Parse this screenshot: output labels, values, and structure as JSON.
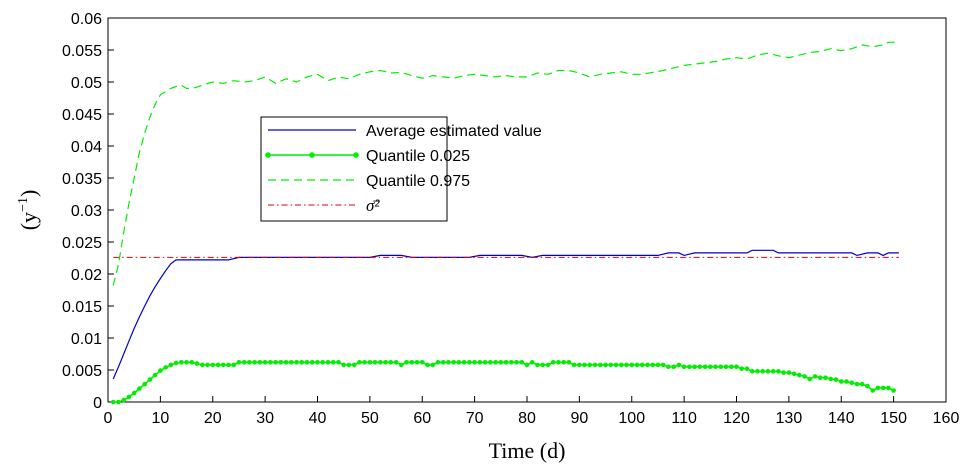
{
  "chart_data": {
    "type": "line",
    "xlabel": "Time (d)",
    "ylabel": "(y−1)",
    "ylabel_base": "(y",
    "ylabel_exp": "−1",
    "ylabel_close": ")",
    "xlim": [
      0,
      160
    ],
    "ylim": [
      0,
      0.06
    ],
    "x_ticks": [
      0,
      10,
      20,
      30,
      40,
      50,
      60,
      70,
      80,
      90,
      100,
      110,
      120,
      130,
      140,
      150,
      160
    ],
    "y_ticks": [
      0,
      0.005,
      0.01,
      0.015,
      0.02,
      0.025,
      0.03,
      0.035,
      0.04,
      0.045,
      0.05,
      0.055,
      0.06
    ],
    "x_tick_labels": [
      "0",
      "10",
      "20",
      "30",
      "40",
      "50",
      "60",
      "70",
      "80",
      "90",
      "100",
      "110",
      "120",
      "130",
      "140",
      "150",
      "160"
    ],
    "y_tick_labels": [
      "0",
      "0.005",
      "0.01",
      "0.015",
      "0.02",
      "0.025",
      "0.03",
      "0.035",
      "0.04",
      "0.045",
      "0.05",
      "0.055",
      "0.06"
    ],
    "grid": false,
    "legend_position": "center-left",
    "colors": {
      "average": "#0000cc",
      "quantile_low": "#00ee00",
      "quantile_high": "#00ee00",
      "sigma": "#dd0000"
    },
    "series": [
      {
        "name": "Average estimated value",
        "style": "solid",
        "points": [
          [
            1,
            0.0036
          ],
          [
            2,
            0.0055
          ],
          [
            3,
            0.0075
          ],
          [
            4,
            0.0095
          ],
          [
            5,
            0.0115
          ],
          [
            6,
            0.0133
          ],
          [
            7,
            0.015
          ],
          [
            8,
            0.0166
          ],
          [
            9,
            0.018
          ],
          [
            10,
            0.0193
          ],
          [
            11,
            0.0205
          ],
          [
            12,
            0.0216
          ],
          [
            13,
            0.0222
          ],
          [
            14,
            0.0222
          ],
          [
            16,
            0.0222
          ],
          [
            18,
            0.0222
          ],
          [
            20,
            0.0222
          ],
          [
            23,
            0.0222
          ],
          [
            25,
            0.0226
          ],
          [
            30,
            0.0226
          ],
          [
            35,
            0.0226
          ],
          [
            40,
            0.0226
          ],
          [
            45,
            0.0226
          ],
          [
            50,
            0.0226
          ],
          [
            52,
            0.0229
          ],
          [
            56,
            0.0229
          ],
          [
            58,
            0.0226
          ],
          [
            62,
            0.0226
          ],
          [
            66,
            0.0226
          ],
          [
            69,
            0.0226
          ],
          [
            71,
            0.0229
          ],
          [
            75,
            0.0229
          ],
          [
            79,
            0.0229
          ],
          [
            81,
            0.0226
          ],
          [
            83,
            0.0229
          ],
          [
            88,
            0.0229
          ],
          [
            92,
            0.0229
          ],
          [
            96,
            0.0229
          ],
          [
            100,
            0.0229
          ],
          [
            105,
            0.0229
          ],
          [
            107,
            0.0233
          ],
          [
            109,
            0.0233
          ],
          [
            110,
            0.0229
          ],
          [
            112,
            0.0233
          ],
          [
            116,
            0.0233
          ],
          [
            120,
            0.0233
          ],
          [
            122,
            0.0233
          ],
          [
            123,
            0.0237
          ],
          [
            127,
            0.0237
          ],
          [
            128,
            0.0233
          ],
          [
            133,
            0.0233
          ],
          [
            138,
            0.0233
          ],
          [
            142,
            0.0233
          ],
          [
            143,
            0.0229
          ],
          [
            145,
            0.0233
          ],
          [
            147,
            0.0233
          ],
          [
            148,
            0.0229
          ],
          [
            149,
            0.0233
          ],
          [
            151,
            0.0233
          ]
        ]
      },
      {
        "name": "Quantile 0.025",
        "style": "solid-markers",
        "points": [
          [
            1,
            0.0
          ],
          [
            2,
            0.0
          ],
          [
            3,
            0.0003
          ],
          [
            4,
            0.0008
          ],
          [
            5,
            0.0014
          ],
          [
            6,
            0.0021
          ],
          [
            7,
            0.0028
          ],
          [
            8,
            0.0035
          ],
          [
            9,
            0.0042
          ],
          [
            10,
            0.0049
          ],
          [
            11,
            0.0054
          ],
          [
            12,
            0.0058
          ],
          [
            13,
            0.0061
          ],
          [
            14,
            0.0062
          ],
          [
            15,
            0.0062
          ],
          [
            16,
            0.0062
          ],
          [
            17,
            0.006
          ],
          [
            18,
            0.0058
          ],
          [
            19,
            0.0058
          ],
          [
            20,
            0.0058
          ],
          [
            21,
            0.0058
          ],
          [
            22,
            0.0058
          ],
          [
            23,
            0.0058
          ],
          [
            24,
            0.0058
          ],
          [
            25,
            0.0062
          ],
          [
            26,
            0.0062
          ],
          [
            27,
            0.0062
          ],
          [
            28,
            0.0062
          ],
          [
            29,
            0.0062
          ],
          [
            30,
            0.0062
          ],
          [
            31,
            0.0062
          ],
          [
            32,
            0.0062
          ],
          [
            33,
            0.0062
          ],
          [
            34,
            0.0062
          ],
          [
            35,
            0.0062
          ],
          [
            36,
            0.0062
          ],
          [
            37,
            0.0062
          ],
          [
            38,
            0.0062
          ],
          [
            39,
            0.0062
          ],
          [
            40,
            0.0062
          ],
          [
            41,
            0.0062
          ],
          [
            42,
            0.0062
          ],
          [
            43,
            0.0062
          ],
          [
            44,
            0.0062
          ],
          [
            45,
            0.0058
          ],
          [
            46,
            0.0058
          ],
          [
            47,
            0.0058
          ],
          [
            48,
            0.0062
          ],
          [
            49,
            0.0062
          ],
          [
            50,
            0.0062
          ],
          [
            51,
            0.0062
          ],
          [
            52,
            0.0062
          ],
          [
            53,
            0.0062
          ],
          [
            54,
            0.0062
          ],
          [
            55,
            0.0062
          ],
          [
            56,
            0.0058
          ],
          [
            57,
            0.0062
          ],
          [
            58,
            0.0062
          ],
          [
            59,
            0.0062
          ],
          [
            60,
            0.0062
          ],
          [
            61,
            0.0058
          ],
          [
            62,
            0.0058
          ],
          [
            63,
            0.0062
          ],
          [
            64,
            0.0062
          ],
          [
            65,
            0.0062
          ],
          [
            66,
            0.0062
          ],
          [
            67,
            0.0062
          ],
          [
            68,
            0.0062
          ],
          [
            69,
            0.0062
          ],
          [
            70,
            0.0062
          ],
          [
            71,
            0.0062
          ],
          [
            72,
            0.0062
          ],
          [
            73,
            0.0062
          ],
          [
            74,
            0.0062
          ],
          [
            75,
            0.0062
          ],
          [
            76,
            0.0062
          ],
          [
            77,
            0.0062
          ],
          [
            78,
            0.0062
          ],
          [
            79,
            0.0062
          ],
          [
            80,
            0.0058
          ],
          [
            81,
            0.0062
          ],
          [
            82,
            0.0058
          ],
          [
            83,
            0.0058
          ],
          [
            84,
            0.0058
          ],
          [
            85,
            0.0062
          ],
          [
            86,
            0.0062
          ],
          [
            87,
            0.0062
          ],
          [
            88,
            0.0062
          ],
          [
            89,
            0.0058
          ],
          [
            90,
            0.0058
          ],
          [
            91,
            0.0058
          ],
          [
            92,
            0.0058
          ],
          [
            93,
            0.0058
          ],
          [
            94,
            0.0058
          ],
          [
            95,
            0.0058
          ],
          [
            96,
            0.0058
          ],
          [
            97,
            0.0058
          ],
          [
            98,
            0.0058
          ],
          [
            99,
            0.0058
          ],
          [
            100,
            0.0058
          ],
          [
            101,
            0.0058
          ],
          [
            102,
            0.0058
          ],
          [
            103,
            0.0058
          ],
          [
            104,
            0.0058
          ],
          [
            105,
            0.0058
          ],
          [
            106,
            0.0058
          ],
          [
            107,
            0.0055
          ],
          [
            108,
            0.0055
          ],
          [
            109,
            0.0058
          ],
          [
            110,
            0.0055
          ],
          [
            111,
            0.0055
          ],
          [
            112,
            0.0055
          ],
          [
            113,
            0.0055
          ],
          [
            114,
            0.0055
          ],
          [
            115,
            0.0055
          ],
          [
            116,
            0.0055
          ],
          [
            117,
            0.0055
          ],
          [
            118,
            0.0055
          ],
          [
            119,
            0.0055
          ],
          [
            120,
            0.0055
          ],
          [
            121,
            0.0052
          ],
          [
            122,
            0.0052
          ],
          [
            123,
            0.0048
          ],
          [
            124,
            0.0048
          ],
          [
            125,
            0.0048
          ],
          [
            126,
            0.0048
          ],
          [
            127,
            0.0048
          ],
          [
            128,
            0.0048
          ],
          [
            129,
            0.0046
          ],
          [
            130,
            0.0046
          ],
          [
            131,
            0.0044
          ],
          [
            132,
            0.0042
          ],
          [
            133,
            0.004
          ],
          [
            134,
            0.0036
          ],
          [
            135,
            0.004
          ],
          [
            136,
            0.0038
          ],
          [
            137,
            0.0038
          ],
          [
            138,
            0.0036
          ],
          [
            139,
            0.0035
          ],
          [
            140,
            0.0032
          ],
          [
            141,
            0.0032
          ],
          [
            142,
            0.003
          ],
          [
            143,
            0.0028
          ],
          [
            144,
            0.0028
          ],
          [
            145,
            0.0025
          ],
          [
            146,
            0.0018
          ],
          [
            147,
            0.0022
          ],
          [
            148,
            0.0022
          ],
          [
            149,
            0.0022
          ],
          [
            150,
            0.0018
          ]
        ]
      },
      {
        "name": "Quantile 0.975",
        "style": "dashed",
        "points": [
          [
            1,
            0.0182
          ],
          [
            2,
            0.0215
          ],
          [
            3,
            0.0265
          ],
          [
            4,
            0.031
          ],
          [
            5,
            0.035
          ],
          [
            6,
            0.039
          ],
          [
            7,
            0.042
          ],
          [
            8,
            0.0445
          ],
          [
            9,
            0.0465
          ],
          [
            10,
            0.048
          ],
          [
            11,
            0.0485
          ],
          [
            12,
            0.049
          ],
          [
            13,
            0.0493
          ],
          [
            14,
            0.0495
          ],
          [
            15,
            0.049
          ],
          [
            16,
            0.049
          ],
          [
            17,
            0.0492
          ],
          [
            18,
            0.0495
          ],
          [
            20,
            0.05
          ],
          [
            22,
            0.0498
          ],
          [
            24,
            0.0502
          ],
          [
            26,
            0.05
          ],
          [
            28,
            0.0502
          ],
          [
            30,
            0.0508
          ],
          [
            32,
            0.0498
          ],
          [
            34,
            0.0505
          ],
          [
            36,
            0.05
          ],
          [
            38,
            0.0508
          ],
          [
            40,
            0.0512
          ],
          [
            42,
            0.0502
          ],
          [
            44,
            0.0508
          ],
          [
            46,
            0.0505
          ],
          [
            48,
            0.0512
          ],
          [
            50,
            0.0516
          ],
          [
            52,
            0.0518
          ],
          [
            54,
            0.0514
          ],
          [
            56,
            0.0515
          ],
          [
            58,
            0.051
          ],
          [
            60,
            0.0506
          ],
          [
            62,
            0.051
          ],
          [
            64,
            0.0508
          ],
          [
            66,
            0.0506
          ],
          [
            68,
            0.051
          ],
          [
            70,
            0.0512
          ],
          [
            72,
            0.051
          ],
          [
            74,
            0.0508
          ],
          [
            76,
            0.051
          ],
          [
            78,
            0.0508
          ],
          [
            80,
            0.0508
          ],
          [
            82,
            0.0514
          ],
          [
            84,
            0.0512
          ],
          [
            86,
            0.0518
          ],
          [
            88,
            0.0518
          ],
          [
            90,
            0.0514
          ],
          [
            92,
            0.0508
          ],
          [
            94,
            0.0512
          ],
          [
            96,
            0.0514
          ],
          [
            98,
            0.0516
          ],
          [
            100,
            0.0512
          ],
          [
            102,
            0.0512
          ],
          [
            104,
            0.0515
          ],
          [
            106,
            0.0518
          ],
          [
            108,
            0.0522
          ],
          [
            110,
            0.0526
          ],
          [
            112,
            0.0528
          ],
          [
            114,
            0.053
          ],
          [
            116,
            0.0532
          ],
          [
            118,
            0.0536
          ],
          [
            120,
            0.0538
          ],
          [
            122,
            0.0536
          ],
          [
            124,
            0.0542
          ],
          [
            126,
            0.0545
          ],
          [
            128,
            0.0541
          ],
          [
            130,
            0.0538
          ],
          [
            132,
            0.0542
          ],
          [
            134,
            0.0546
          ],
          [
            136,
            0.0548
          ],
          [
            138,
            0.0552
          ],
          [
            140,
            0.0549
          ],
          [
            142,
            0.0552
          ],
          [
            144,
            0.0558
          ],
          [
            146,
            0.0555
          ],
          [
            148,
            0.0558
          ],
          [
            149,
            0.0562
          ],
          [
            151,
            0.0562
          ]
        ]
      },
      {
        "name": "σ̄²",
        "style": "dash-dot",
        "points": [
          [
            1,
            0.0226
          ],
          [
            151,
            0.0226
          ]
        ]
      }
    ]
  }
}
